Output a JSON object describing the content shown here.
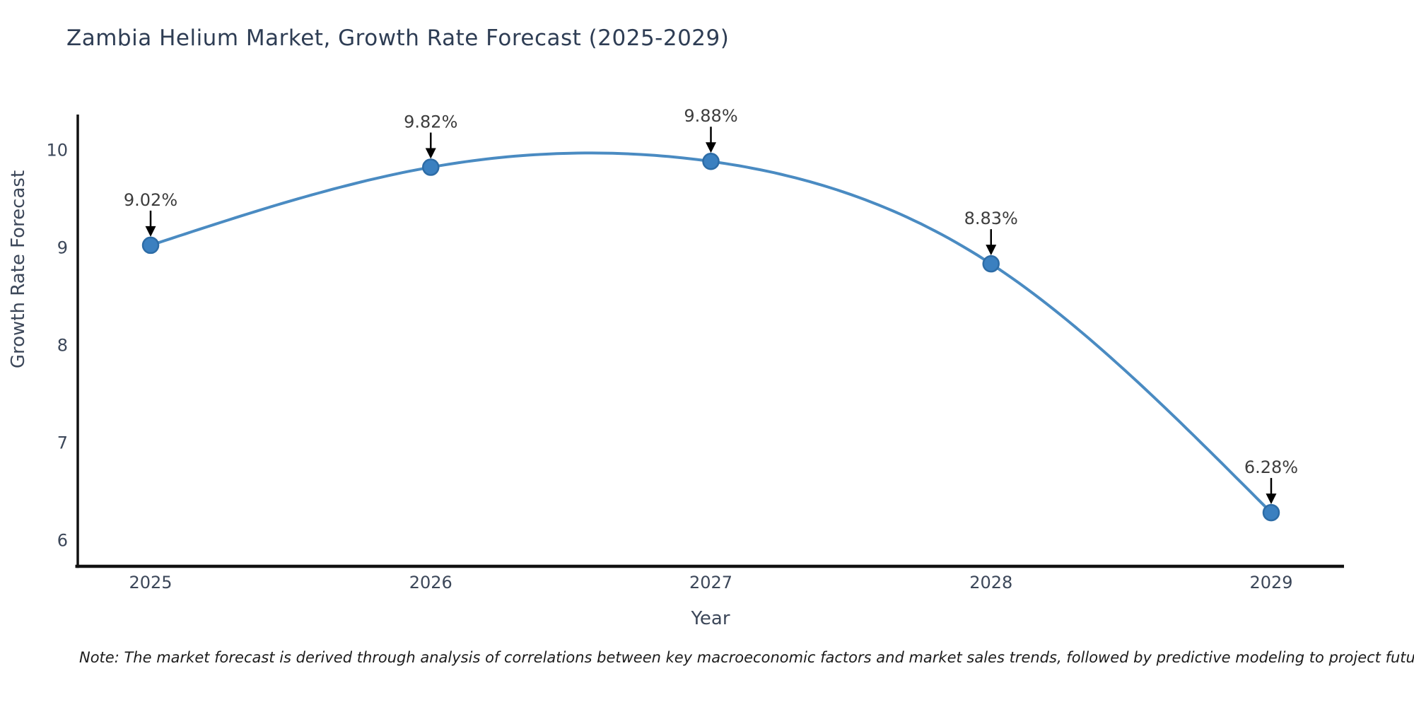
{
  "chart_data": {
    "type": "line",
    "title": "Zambia Helium Market, Growth Rate Forecast (2025-2029)",
    "xlabel": "Year",
    "ylabel": "Growth Rate Forecast",
    "x": [
      2025,
      2026,
      2027,
      2028,
      2029
    ],
    "series": [
      {
        "name": "Growth Rate Forecast",
        "values": [
          9.02,
          9.82,
          9.88,
          8.83,
          6.28
        ]
      }
    ],
    "point_labels": [
      "9.02%",
      "9.82%",
      "9.88%",
      "8.83%",
      "6.28%"
    ],
    "yticks": [
      6,
      7,
      8,
      9,
      10
    ],
    "xticks": [
      2025,
      2026,
      2027,
      2028,
      2029
    ],
    "xlim": [
      2024.74,
      2029.26
    ],
    "ylim": [
      5.73,
      10.36
    ],
    "grid": false,
    "legend": null,
    "smooth": true,
    "colors": {
      "line": "#4a8bc2",
      "marker_fill": "#3b80c0",
      "marker_edge": "#2d6ca6",
      "annotation_arrow": "#000000",
      "annotation_text": "#3d3d3d",
      "axis": "#111111",
      "tick_text": "#3c4759",
      "title_text": "#2e3d54",
      "background": "#ffffff"
    }
  },
  "note": "Note: The market forecast is derived through analysis of correlations between key macroeconomic factors and market sales trends, followed by predictive modeling to project future sales"
}
